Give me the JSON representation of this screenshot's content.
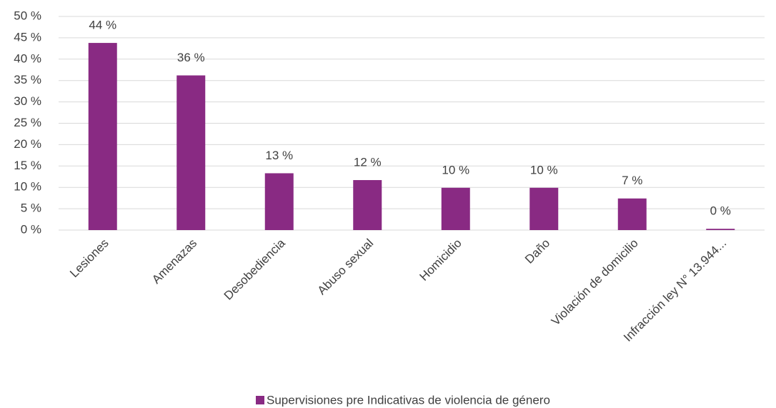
{
  "chart_data": {
    "type": "bar",
    "categories": [
      "Lesiones",
      "Amenazas",
      "Desobediencia",
      "Abuso sexual",
      "Homicidio",
      "Daño",
      "Violación de domicilio",
      "Infracción ley N° 13.944..."
    ],
    "series": [
      {
        "name": "Supervisiones pre Indicativas de violencia de género",
        "color": "#892a83",
        "values": [
          43.8,
          36.2,
          13.3,
          11.7,
          9.9,
          9.9,
          7.4,
          0.3
        ],
        "value_labels": [
          "44 %",
          "36 %",
          "13 %",
          "12 %",
          "10 %",
          "10 %",
          "7 %",
          "0 %"
        ]
      }
    ],
    "ylim": [
      0,
      50
    ],
    "yticks": [
      {
        "value": 0,
        "label": "0 %"
      },
      {
        "value": 5,
        "label": "5 %"
      },
      {
        "value": 10,
        "label": "10 %"
      },
      {
        "value": 15,
        "label": "15 %"
      },
      {
        "value": 20,
        "label": "20 %"
      },
      {
        "value": 25,
        "label": "25 %"
      },
      {
        "value": 30,
        "label": "30 %"
      },
      {
        "value": 35,
        "label": "35 %"
      },
      {
        "value": 40,
        "label": "40 %"
      },
      {
        "value": 45,
        "label": "45 %"
      },
      {
        "value": 50,
        "label": "50 %"
      }
    ],
    "grid": true,
    "legend": "bottom"
  }
}
